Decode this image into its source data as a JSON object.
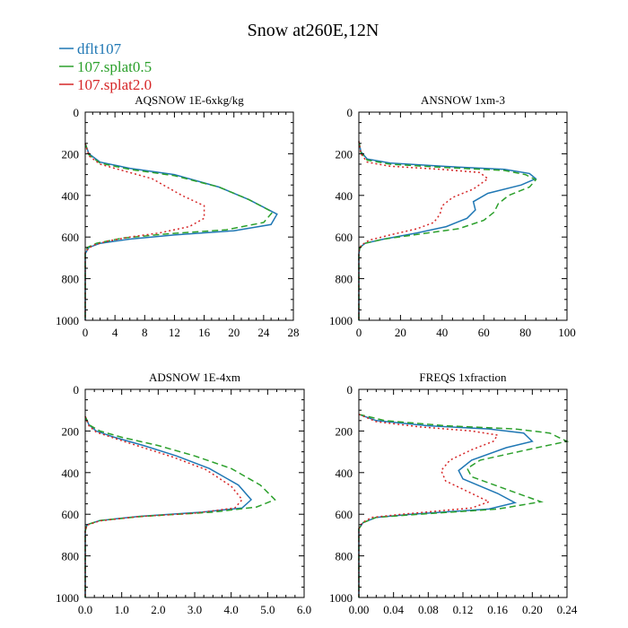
{
  "title": "Snow at260E,12N",
  "legend": {
    "placement": "top-left",
    "entries": [
      {
        "label": "dflt107",
        "color": "#1f77b4",
        "dash": "solid"
      },
      {
        "label": "107.splat0.5",
        "color": "#2ca02c",
        "dash": "dashed"
      },
      {
        "label": "107.splat2.0",
        "color": "#d62728",
        "dash": "dotted"
      }
    ]
  },
  "chart_data": [
    {
      "type": "line",
      "title": "AQSNOW  1E-6xkg/kg",
      "xlim": [
        0,
        28
      ],
      "ylim": [
        1000,
        0
      ],
      "y_inverted": true,
      "xticks": [
        0,
        4,
        8,
        12,
        16,
        20,
        24,
        28
      ],
      "xticklabels": [
        "0",
        "4",
        "8",
        "12",
        "16",
        "20",
        "24",
        "28"
      ],
      "yticks": [
        0,
        200,
        400,
        600,
        800,
        1000
      ],
      "yticklabels": [
        "0",
        "200",
        "400",
        "600",
        "800",
        "1000"
      ],
      "series": [
        {
          "name": "dflt107",
          "x": [
            0,
            0.5,
            2,
            6,
            12,
            18,
            22,
            25.8,
            25,
            20,
            12,
            6,
            2,
            0.5,
            0,
            0
          ],
          "y": [
            150,
            200,
            240,
            270,
            300,
            360,
            420,
            490,
            540,
            570,
            590,
            610,
            630,
            650,
            680,
            1000
          ]
        },
        {
          "name": "107.splat0.5",
          "x": [
            0,
            0.5,
            2,
            6,
            12,
            18,
            22,
            25.2,
            24,
            19,
            11,
            5,
            1.5,
            0.3,
            0,
            0
          ],
          "y": [
            150,
            205,
            245,
            275,
            305,
            360,
            420,
            480,
            530,
            565,
            585,
            605,
            630,
            650,
            680,
            1000
          ]
        },
        {
          "name": "107.splat2.0",
          "x": [
            0,
            0.5,
            2,
            5,
            9,
            11,
            13,
            16,
            16,
            14,
            10,
            6,
            3,
            1,
            0,
            0
          ],
          "y": [
            150,
            210,
            250,
            280,
            320,
            360,
            400,
            450,
            510,
            550,
            580,
            600,
            620,
            640,
            670,
            1000
          ]
        }
      ]
    },
    {
      "type": "line",
      "title": "ANSNOW  1xm-3",
      "xlim": [
        0,
        100
      ],
      "ylim": [
        1000,
        0
      ],
      "y_inverted": true,
      "xticks": [
        0,
        20,
        40,
        60,
        80,
        100
      ],
      "xticklabels": [
        "0",
        "20",
        "40",
        "60",
        "80",
        "100"
      ],
      "yticks": [
        0,
        200,
        400,
        600,
        800,
        1000
      ],
      "yticklabels": [
        "0",
        "200",
        "400",
        "600",
        "800",
        "1000"
      ],
      "series": [
        {
          "name": "dflt107",
          "x": [
            0,
            1,
            4,
            15,
            40,
            70,
            82,
            85,
            78,
            62,
            55,
            56,
            52,
            42,
            28,
            12,
            3,
            0.5,
            0,
            0
          ],
          "y": [
            140,
            190,
            225,
            245,
            260,
            275,
            295,
            320,
            350,
            390,
            430,
            470,
            510,
            550,
            580,
            610,
            630,
            650,
            680,
            1000
          ]
        },
        {
          "name": "107.splat0.5",
          "x": [
            0,
            1,
            4,
            15,
            40,
            70,
            80,
            85,
            82,
            72,
            67,
            65,
            60,
            48,
            30,
            12,
            3,
            0.5,
            0,
            0
          ],
          "y": [
            140,
            195,
            230,
            250,
            265,
            280,
            300,
            325,
            360,
            400,
            440,
            480,
            520,
            560,
            585,
            610,
            630,
            650,
            680,
            1000
          ]
        },
        {
          "name": "107.splat2.0",
          "x": [
            0,
            1,
            4,
            15,
            40,
            58,
            62,
            55,
            45,
            40,
            39,
            36,
            28,
            15,
            5,
            1,
            0,
            0
          ],
          "y": [
            140,
            200,
            240,
            260,
            275,
            290,
            320,
            370,
            410,
            450,
            490,
            530,
            560,
            590,
            615,
            640,
            670,
            1000
          ]
        }
      ]
    },
    {
      "type": "line",
      "title": "ADSNOW  1E-4xm",
      "xlim": [
        0,
        6
      ],
      "ylim": [
        1000,
        0
      ],
      "y_inverted": true,
      "xticks": [
        0,
        1,
        2,
        3,
        4,
        5,
        6
      ],
      "xticklabels": [
        "0.0",
        "1.0",
        "2.0",
        "3.0",
        "4.0",
        "5.0",
        "6.0"
      ],
      "yticks": [
        0,
        200,
        400,
        600,
        800,
        1000
      ],
      "yticklabels": [
        "0",
        "200",
        "400",
        "600",
        "800",
        "1000"
      ],
      "series": [
        {
          "name": "dflt107",
          "x": [
            0,
            0.1,
            0.3,
            0.8,
            1.6,
            2.5,
            3.4,
            4.2,
            4.55,
            4.3,
            3.2,
            1.5,
            0.4,
            0.05,
            0,
            0
          ],
          "y": [
            130,
            170,
            200,
            230,
            270,
            320,
            380,
            460,
            530,
            570,
            590,
            610,
            630,
            650,
            680,
            1000
          ]
        },
        {
          "name": "107.splat0.5",
          "x": [
            0,
            0.1,
            0.4,
            1.0,
            2.0,
            3.0,
            4.0,
            4.8,
            5.2,
            4.7,
            3.5,
            1.6,
            0.4,
            0.05,
            0,
            0
          ],
          "y": [
            130,
            170,
            200,
            230,
            270,
            320,
            380,
            460,
            530,
            565,
            590,
            610,
            630,
            650,
            680,
            1000
          ]
        },
        {
          "name": "107.splat2.0",
          "x": [
            0,
            0.1,
            0.3,
            0.8,
            1.5,
            2.4,
            3.3,
            4.0,
            4.3,
            4.1,
            3.0,
            1.4,
            0.4,
            0.05,
            0,
            0
          ],
          "y": [
            130,
            175,
            205,
            235,
            275,
            325,
            385,
            465,
            530,
            570,
            595,
            612,
            632,
            652,
            680,
            1000
          ]
        }
      ]
    },
    {
      "type": "line",
      "title": "FREQS  1xfraction",
      "xlim": [
        0,
        0.24
      ],
      "ylim": [
        1000,
        0
      ],
      "y_inverted": true,
      "xticks": [
        0,
        0.04,
        0.08,
        0.12,
        0.16,
        0.2,
        0.24
      ],
      "xticklabels": [
        "0.00",
        "0.04",
        "0.08",
        "0.12",
        "0.16",
        "0.20",
        "0.24"
      ],
      "yticks": [
        0,
        200,
        400,
        600,
        800,
        1000
      ],
      "yticklabels": [
        "0",
        "200",
        "400",
        "600",
        "800",
        "1000"
      ],
      "series": [
        {
          "name": "dflt107",
          "x": [
            0,
            0.02,
            0.08,
            0.15,
            0.19,
            0.2,
            0.17,
            0.13,
            0.115,
            0.12,
            0.16,
            0.18,
            0.15,
            0.06,
            0.02,
            0.005,
            0,
            0
          ],
          "y": [
            120,
            150,
            175,
            190,
            210,
            250,
            280,
            340,
            390,
            430,
            500,
            545,
            575,
            600,
            615,
            640,
            670,
            1000
          ]
        },
        {
          "name": "107.splat0.5",
          "x": [
            0,
            0.03,
            0.1,
            0.18,
            0.22,
            0.24,
            0.2,
            0.14,
            0.125,
            0.13,
            0.17,
            0.21,
            0.16,
            0.07,
            0.02,
            0.005,
            0,
            0
          ],
          "y": [
            120,
            150,
            175,
            190,
            210,
            250,
            285,
            340,
            380,
            420,
            480,
            540,
            575,
            600,
            615,
            640,
            670,
            1000
          ]
        },
        {
          "name": "107.splat2.0",
          "x": [
            0,
            0.02,
            0.07,
            0.13,
            0.16,
            0.155,
            0.13,
            0.105,
            0.095,
            0.1,
            0.13,
            0.15,
            0.13,
            0.05,
            0.015,
            0.004,
            0,
            0
          ],
          "y": [
            120,
            155,
            180,
            200,
            220,
            250,
            290,
            340,
            390,
            440,
            500,
            540,
            570,
            600,
            615,
            640,
            670,
            1000
          ]
        }
      ]
    }
  ]
}
